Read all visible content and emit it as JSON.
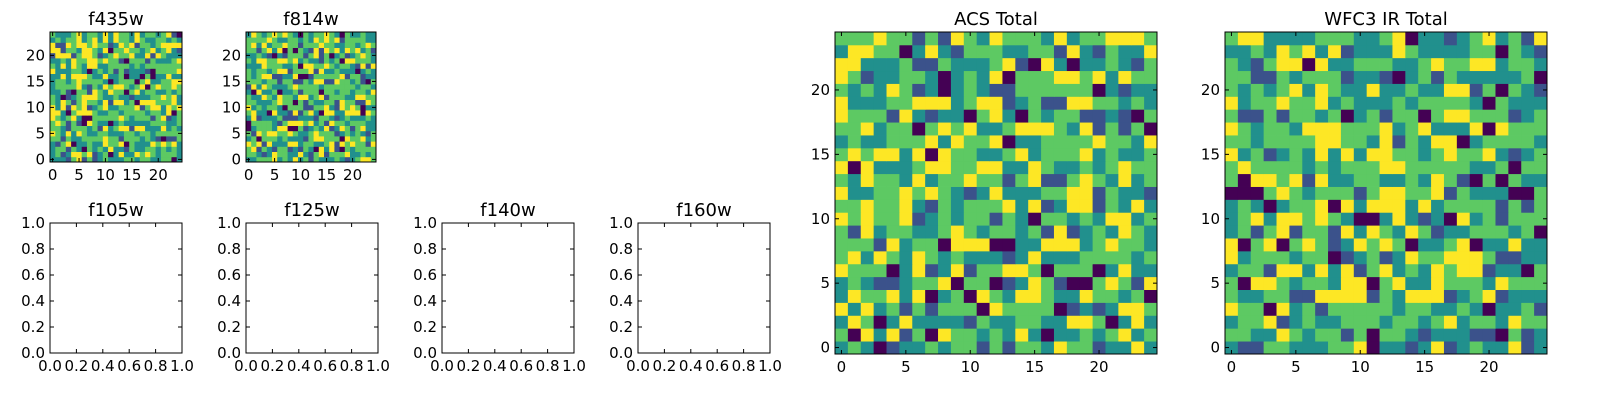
{
  "figure": {
    "colormap": [
      "#440154",
      "#3b528b",
      "#21908d",
      "#5dc963",
      "#fde725"
    ]
  },
  "chart_data": [
    {
      "id": "f435w",
      "type": "heatmap",
      "title": "f435w",
      "grid_size": 25,
      "xlim": [
        -0.5,
        24.5
      ],
      "ylim": [
        -0.5,
        24.5
      ],
      "xticks": [
        0,
        5,
        10,
        15,
        20
      ],
      "yticks": [
        0,
        5,
        10,
        15,
        20
      ],
      "xtick_labels": [
        "0",
        "5",
        "10",
        "15",
        "20"
      ],
      "ytick_labels": [
        "0",
        "5",
        "10",
        "15",
        "20"
      ],
      "values_note_seed": 11,
      "empty": false
    },
    {
      "id": "f814w",
      "type": "heatmap",
      "title": "f814w",
      "grid_size": 25,
      "xlim": [
        -0.5,
        24.5
      ],
      "ylim": [
        -0.5,
        24.5
      ],
      "xticks": [
        0,
        5,
        10,
        15,
        20
      ],
      "yticks": [
        0,
        5,
        10,
        15,
        20
      ],
      "xtick_labels": [
        "0",
        "5",
        "10",
        "15",
        "20"
      ],
      "ytick_labels": [
        "0",
        "5",
        "10",
        "15",
        "20"
      ],
      "values_note_seed": 23,
      "empty": false
    },
    {
      "id": "f105w",
      "type": "heatmap",
      "title": "f105w",
      "empty": true,
      "xlim": [
        0,
        1
      ],
      "ylim": [
        0,
        1
      ],
      "xticks": [
        0,
        0.2,
        0.4,
        0.6,
        0.8,
        1.0
      ],
      "yticks": [
        0,
        0.2,
        0.4,
        0.6,
        0.8,
        1.0
      ],
      "xtick_labels": [
        "0.0",
        "0.2",
        "0.4",
        "0.6",
        "0.8",
        "1.0"
      ],
      "ytick_labels": [
        "0.0",
        "0.2",
        "0.4",
        "0.6",
        "0.8",
        "1.0"
      ]
    },
    {
      "id": "f125w",
      "type": "heatmap",
      "title": "f125w",
      "empty": true,
      "xlim": [
        0,
        1
      ],
      "ylim": [
        0,
        1
      ],
      "xticks": [
        0,
        0.2,
        0.4,
        0.6,
        0.8,
        1.0
      ],
      "yticks": [
        0,
        0.2,
        0.4,
        0.6,
        0.8,
        1.0
      ],
      "xtick_labels": [
        "0.0",
        "0.2",
        "0.4",
        "0.6",
        "0.8",
        "1.0"
      ],
      "ytick_labels": [
        "0.0",
        "0.2",
        "0.4",
        "0.6",
        "0.8",
        "1.0"
      ]
    },
    {
      "id": "f140w",
      "type": "heatmap",
      "title": "f140w",
      "empty": true,
      "xlim": [
        0,
        1
      ],
      "ylim": [
        0,
        1
      ],
      "xticks": [
        0,
        0.2,
        0.4,
        0.6,
        0.8,
        1.0
      ],
      "yticks": [
        0,
        0.2,
        0.4,
        0.6,
        0.8,
        1.0
      ],
      "xtick_labels": [
        "0.0",
        "0.2",
        "0.4",
        "0.6",
        "0.8",
        "1.0"
      ],
      "ytick_labels": [
        "0.0",
        "0.2",
        "0.4",
        "0.6",
        "0.8",
        "1.0"
      ]
    },
    {
      "id": "f160w",
      "type": "heatmap",
      "title": "f160w",
      "empty": true,
      "xlim": [
        0,
        1
      ],
      "ylim": [
        0,
        1
      ],
      "xticks": [
        0,
        0.2,
        0.4,
        0.6,
        0.8,
        1.0
      ],
      "yticks": [
        0,
        0.2,
        0.4,
        0.6,
        0.8,
        1.0
      ],
      "xtick_labels": [
        "0.0",
        "0.2",
        "0.4",
        "0.6",
        "0.8",
        "1.0"
      ],
      "ytick_labels": [
        "0.0",
        "0.2",
        "0.4",
        "0.6",
        "0.8",
        "1.0"
      ]
    },
    {
      "id": "acs_total",
      "type": "heatmap",
      "title": "ACS Total",
      "grid_size": 25,
      "xlim": [
        -0.5,
        24.5
      ],
      "ylim": [
        -0.5,
        24.5
      ],
      "xticks": [
        0,
        5,
        10,
        15,
        20
      ],
      "yticks": [
        0,
        5,
        10,
        15,
        20
      ],
      "xtick_labels": [
        "0",
        "5",
        "10",
        "15",
        "20"
      ],
      "ytick_labels": [
        "0",
        "5",
        "10",
        "15",
        "20"
      ],
      "values_note_seed": 37,
      "empty": false,
      "hot_cells": [
        [
          5,
          10
        ],
        [
          6,
          13
        ],
        [
          8,
          15
        ],
        [
          11,
          14
        ],
        [
          15,
          5
        ],
        [
          17,
          8
        ],
        [
          22,
          9
        ]
      ],
      "dark_cells": [
        [
          7,
          15
        ],
        [
          9,
          5
        ],
        [
          8,
          8
        ],
        [
          10,
          4
        ],
        [
          11,
          3
        ],
        [
          13,
          8
        ],
        [
          16,
          6
        ],
        [
          17,
          3
        ],
        [
          19,
          5
        ],
        [
          21,
          2
        ],
        [
          24,
          4
        ],
        [
          3,
          2
        ],
        [
          1,
          1
        ]
      ]
    },
    {
      "id": "wfc3_ir_total",
      "type": "heatmap",
      "title": "WFC3 IR Total",
      "grid_size": 25,
      "xlim": [
        -0.5,
        24.5
      ],
      "ylim": [
        -0.5,
        24.5
      ],
      "xticks": [
        0,
        5,
        10,
        15,
        20
      ],
      "yticks": [
        0,
        5,
        10,
        15,
        20
      ],
      "xtick_labels": [
        "0",
        "5",
        "10",
        "15",
        "20"
      ],
      "ytick_labels": [
        "0",
        "5",
        "10",
        "15",
        "20"
      ],
      "values_note_seed": 53,
      "empty": false,
      "hot_cells": [
        [
          9,
          4
        ],
        [
          10,
          4
        ],
        [
          9,
          5
        ],
        [
          10,
          5
        ],
        [
          9,
          6
        ],
        [
          12,
          11
        ],
        [
          13,
          11
        ],
        [
          12,
          12
        ],
        [
          13,
          12
        ]
      ],
      "dark_cells": [
        [
          0,
          12
        ],
        [
          1,
          12
        ],
        [
          2,
          12
        ],
        [
          4,
          8
        ],
        [
          8,
          11
        ],
        [
          10,
          10
        ],
        [
          20,
          19
        ],
        [
          21,
          1
        ],
        [
          23,
          12
        ],
        [
          3,
          3
        ],
        [
          17,
          10
        ],
        [
          20,
          3
        ],
        [
          1,
          8
        ],
        [
          1,
          5
        ]
      ]
    }
  ]
}
